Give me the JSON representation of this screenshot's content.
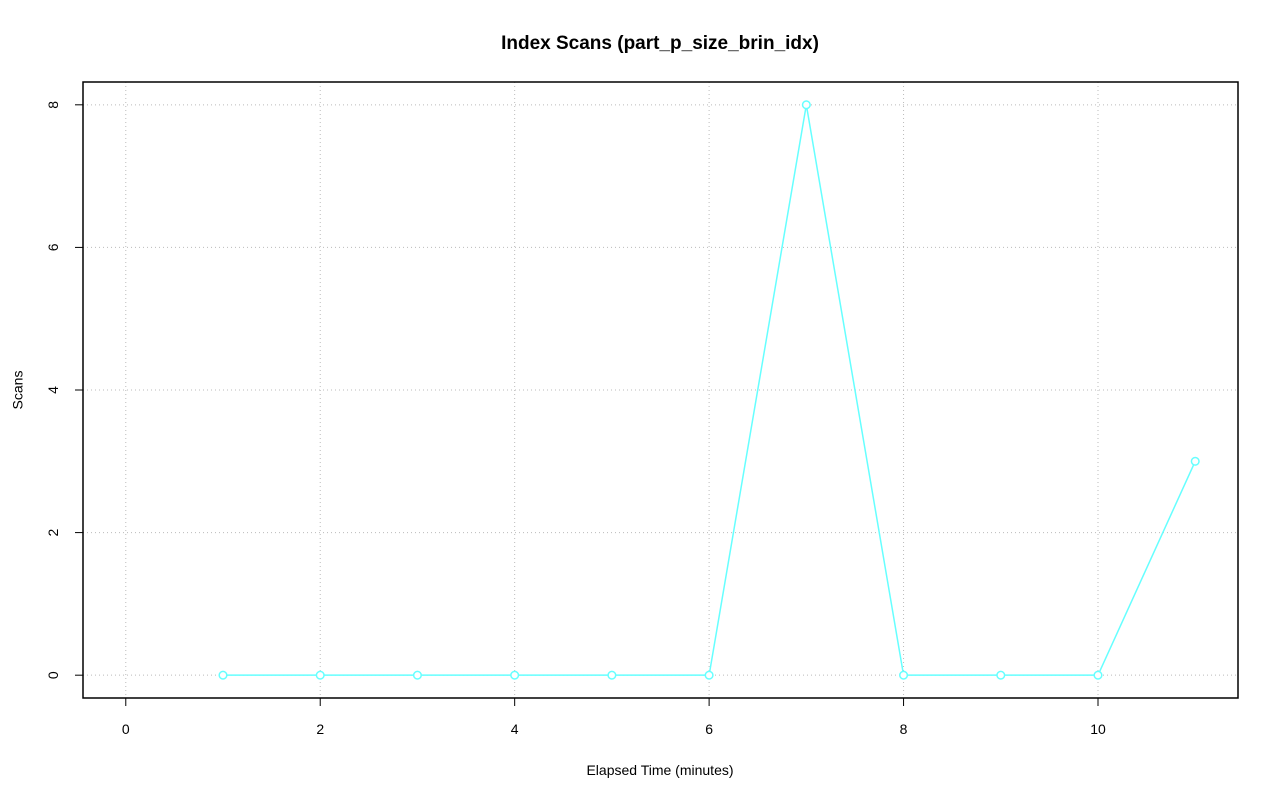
{
  "chart_data": {
    "type": "line",
    "title": "Index Scans (part_p_size_brin_idx)",
    "x_label": "Elapsed Time (minutes)",
    "y_label": "Scans",
    "x": [
      1,
      2,
      3,
      4,
      5,
      6,
      7,
      8,
      9,
      10,
      11
    ],
    "series": [
      {
        "color": "#66ffff",
        "values": [
          0,
          0,
          0,
          0,
          0,
          0,
          8,
          0,
          0,
          0,
          3
        ]
      }
    ],
    "xlim": [
      -0.44,
      11.44
    ],
    "xticks": [
      0,
      2,
      4,
      6,
      8,
      10
    ],
    "ylim": [
      -0.32,
      8.32
    ],
    "yticks": [
      0,
      2,
      4,
      6,
      8
    ],
    "grid": true
  }
}
